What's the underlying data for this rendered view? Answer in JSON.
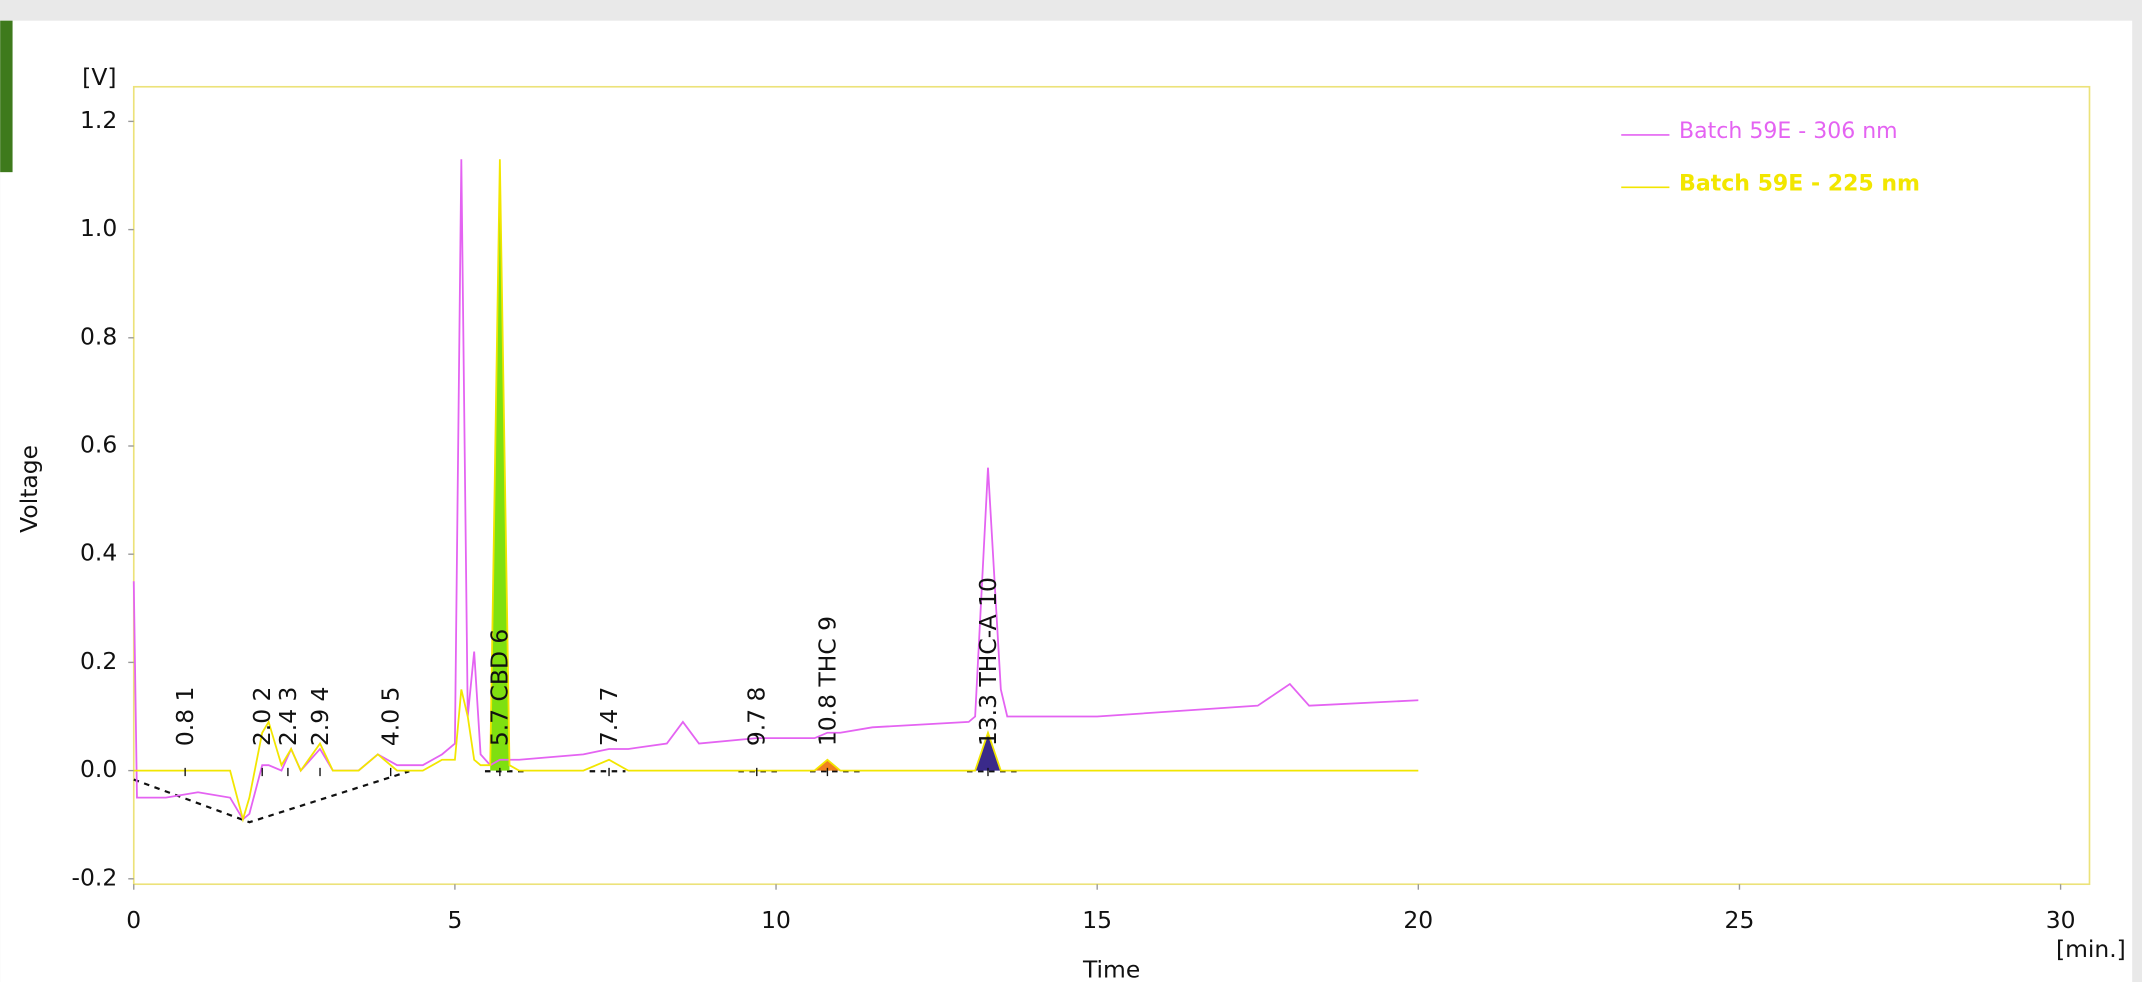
{
  "chart_data": {
    "type": "line",
    "y_unit": "[V]",
    "y_label": "Voltage",
    "x_label": "Time",
    "x_unit": "[min.]",
    "xlim": [
      0,
      30.45
    ],
    "ylim": [
      -0.21,
      1.264
    ],
    "xticks": [
      0,
      5,
      10,
      15,
      20,
      25,
      30
    ],
    "yticks": [
      -0.2,
      {
        "value": 0,
        "label": "0.0"
      },
      0.2,
      0.4,
      0.6,
      0.8,
      {
        "value": 1,
        "label": "1.0"
      },
      1.2
    ],
    "legend": "upper right",
    "x": [
      0,
      0.05,
      0.5,
      1.0,
      1.5,
      1.7,
      1.8,
      2.0,
      2.1,
      2.3,
      2.45,
      2.6,
      2.9,
      3.1,
      3.5,
      3.8,
      4.1,
      4.5,
      4.8,
      5.0,
      5.1,
      5.2,
      5.3,
      5.4,
      5.55,
      5.7,
      5.85,
      6.0,
      7.0,
      7.4,
      7.7,
      8.3,
      8.55,
      8.8,
      9.7,
      10.6,
      10.8,
      11.0,
      11.5,
      13.0,
      13.1,
      13.3,
      13.5,
      13.6,
      15,
      17.5,
      18.0,
      18.3,
      20.0
    ],
    "series": [
      {
        "name": "Batch 59E - 306 nm",
        "color": "#e463f2",
        "values": [
          0.35,
          -0.05,
          -0.05,
          -0.04,
          -0.05,
          -0.09,
          -0.08,
          0.01,
          0.01,
          0.0,
          0.04,
          0.0,
          0.04,
          0.0,
          0.0,
          0.03,
          0.01,
          0.01,
          0.03,
          0.05,
          1.13,
          0.1,
          0.22,
          0.03,
          0.01,
          0.02,
          0.02,
          0.02,
          0.03,
          0.04,
          0.04,
          0.05,
          0.09,
          0.05,
          0.06,
          0.06,
          0.07,
          0.07,
          0.08,
          0.09,
          0.1,
          0.56,
          0.15,
          0.1,
          0.1,
          0.12,
          0.16,
          0.12,
          0.13
        ]
      },
      {
        "name": "Batch 59E - 225 nm",
        "color": "#f2e600",
        "values": [
          0.0,
          0.0,
          0.0,
          0.0,
          0.0,
          -0.09,
          -0.05,
          0.07,
          0.09,
          0.01,
          0.04,
          0.0,
          0.05,
          0.0,
          0.0,
          0.03,
          0.0,
          0.0,
          0.02,
          0.02,
          0.15,
          0.1,
          0.02,
          0.01,
          0.01,
          1.13,
          0.01,
          0.0,
          0.0,
          0.02,
          0.0,
          0.0,
          0.0,
          0.0,
          0.0,
          0.0,
          0.02,
          0.0,
          0.0,
          0.0,
          0.0,
          0.07,
          0.0,
          0.0,
          0.0,
          0.0,
          0.0,
          0.0,
          0.0
        ]
      }
    ],
    "peaks": [
      {
        "x": 0.8,
        "label": "0.8   1"
      },
      {
        "x": 2.0,
        "label": "2.0   2"
      },
      {
        "x": 2.4,
        "label": "2.4   3"
      },
      {
        "x": 2.9,
        "label": "2.9   4"
      },
      {
        "x": 4.0,
        "label": "4.0   5"
      },
      {
        "x": 5.7,
        "label": "5.7 CBD   6",
        "color": "#7fe010"
      },
      {
        "x": 7.4,
        "label": "7.4   7"
      },
      {
        "x": 9.7,
        "label": "9.7   8"
      },
      {
        "x": 10.8,
        "label": "10.8 THC   9",
        "color": "#f08020"
      },
      {
        "x": 13.3,
        "label": "13.3 THC-A   10",
        "color": "#3a2a8a"
      }
    ]
  }
}
